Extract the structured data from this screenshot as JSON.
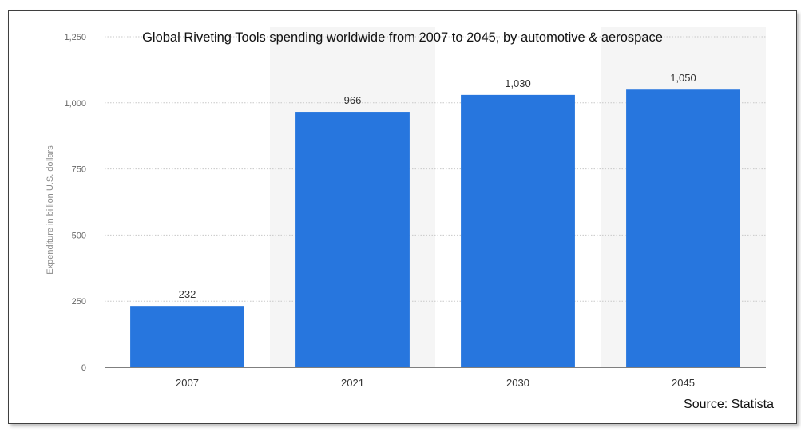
{
  "chart_data": {
    "type": "bar",
    "title": "Global Riveting Tools spending worldwide from 2007 to 2045, by automotive & aerospace",
    "xlabel": "",
    "ylabel": "Expenditure in billion U.S. dollars",
    "categories": [
      "2007",
      "2021",
      "2030",
      "2045"
    ],
    "values": [
      232,
      966,
      1030,
      1050
    ],
    "value_labels": [
      "232",
      "966",
      "1,030",
      "1,050"
    ],
    "ylim": [
      0,
      1250
    ],
    "yticks": [
      0,
      250,
      500,
      750,
      1000,
      1250
    ],
    "ytick_labels": [
      "0",
      "250",
      "500",
      "750",
      "1,000",
      "1,250"
    ],
    "grid": true,
    "bar_color": "#2776de",
    "alt_band_color": "#f5f5f5"
  },
  "source": "Source: Statista"
}
